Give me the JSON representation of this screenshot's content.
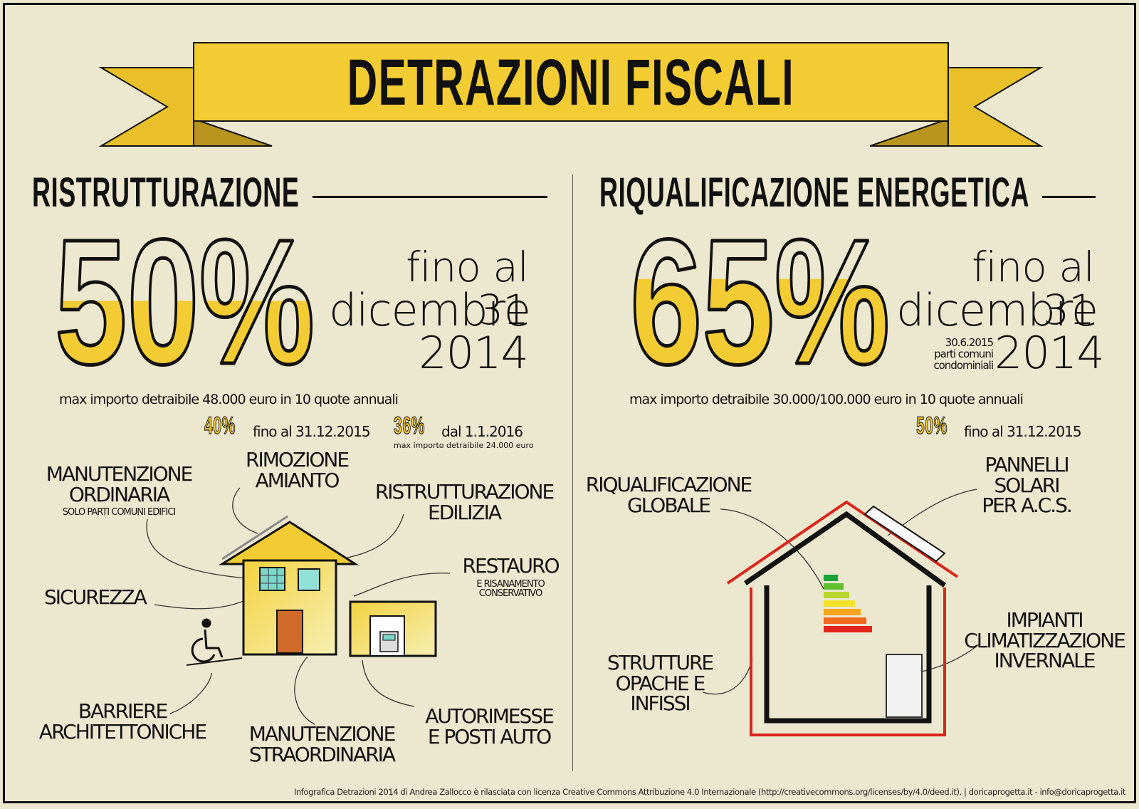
{
  "title": "DETRAZIONI FISCALI",
  "left": {
    "heading": "RISTRUTTURAZIONE",
    "percent": "50%",
    "fill_level": 0.5,
    "date_line1": "fino al 31",
    "date_line2": "dicembre",
    "date_line3": "2014",
    "max_note": "max importo detraibile 48.000 euro in 10 quote annuali",
    "sub1_pct": "40%",
    "sub1_text": "fino al 31.12.2015",
    "sub2_pct": "36%",
    "sub2_text": "dal 1.1.2016",
    "sub2_note": "max importo detraibile 24.000 euro",
    "labels": {
      "manutenzione_ordinaria_1": "MANUTENZIONE",
      "manutenzione_ordinaria_2": "ORDINARIA",
      "manutenzione_ordinaria_note": "SOLO PARTI COMUNI EDIFICI",
      "rimozione_1": "RIMOZIONE",
      "rimozione_2": "AMIANTO",
      "ristrutturazione_1": "RISTRUTTURAZIONE",
      "ristrutturazione_2": "EDILIZIA",
      "restauro": "RESTAURO",
      "restauro_note_1": "E RISANAMENTO",
      "restauro_note_2": "CONSERVATIVO",
      "sicurezza": "SICUREZZA",
      "barriere_1": "BARRIERE",
      "barriere_2": "ARCHITETTONICHE",
      "straordinaria_1": "MANUTENZIONE",
      "straordinaria_2": "STRAORDINARIA",
      "autorimesse_1": "AUTORIMESSE",
      "autorimesse_2": "E POSTI AUTO"
    }
  },
  "right": {
    "heading": "RIQUALIFICAZIONE ENERGETICA",
    "percent": "65%",
    "fill_level": 0.65,
    "date_line1": "fino al 31",
    "date_line2": "dicembre",
    "date_line3": "2014",
    "side_note_1": "30.6.2015",
    "side_note_2": "parti comuni",
    "side_note_3": "condominiali",
    "max_note": "max importo detraibile 30.000/100.000 euro in 10 quote annuali",
    "sub1_pct": "50%",
    "sub1_text": "fino al 31.12.2015",
    "labels": {
      "globale_1": "RIQUALIFICAZIONE",
      "globale_2": "GLOBALE",
      "pannelli_1": "PANNELLI",
      "pannelli_2": "SOLARI",
      "pannelli_3": "PER A.C.S.",
      "impianti_1": "IMPIANTI",
      "impianti_2": "CLIMATIZZAZIONE",
      "impianti_3": "INVERNALE",
      "strutture_1": "STRUTTURE",
      "strutture_2": "OPACHE E",
      "strutture_3": "INFISSI"
    }
  },
  "footer": "Infografica Detrazioni 2014 di Andrea Zallocco è rilasciata con licenza Creative Commons Attribuzione 4.0 Internazionale (http://creativecommons.org/licenses/by/4.0/deed.it). | doricaprogetta.it - info@doricaprogetta.it",
  "colors": {
    "background": "#ece7cf",
    "accent": "#f3cc33",
    "ink": "#111111",
    "red": "#d9261c"
  },
  "icons": [
    "ribbon-banner",
    "house-icon",
    "garage-icon",
    "wheelchair-icon",
    "energy-house-icon",
    "energy-rating-icon",
    "solar-panel-icon",
    "radiator-icon"
  ]
}
